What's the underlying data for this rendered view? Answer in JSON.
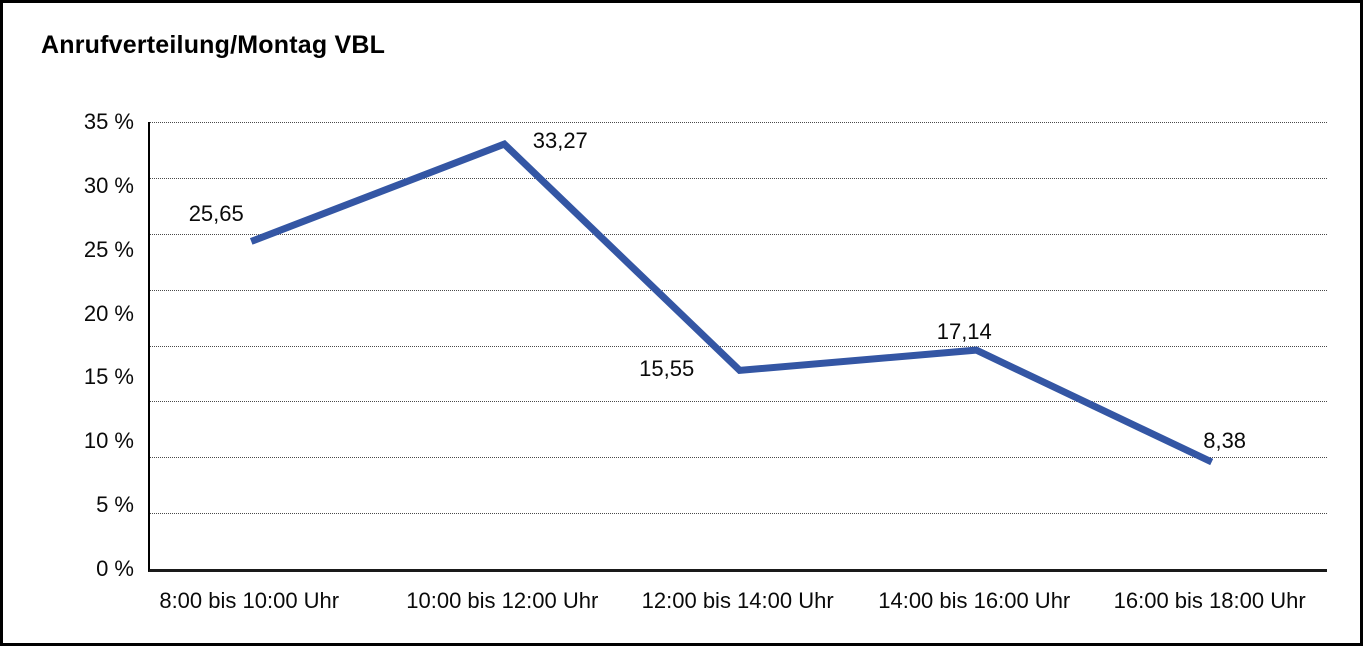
{
  "title": "Anrufverteilung/Montag VBL",
  "chart_data": {
    "type": "line",
    "title": "Anrufverteilung/Montag VBL",
    "categories": [
      "8:00 bis 10:00 Uhr",
      "10:00 bis 12:00 Uhr",
      "12:00 bis 14:00 Uhr",
      "14:00 bis 16:00 Uhr",
      "16:00 bis 18:00 Uhr"
    ],
    "values": [
      25.65,
      33.27,
      15.55,
      17.14,
      8.38
    ],
    "value_labels": [
      "25,65",
      "33,27",
      "15,55",
      "17,14",
      "8,38"
    ],
    "y_tick_labels": [
      "35 %",
      "30 %",
      "25 %",
      "20 %",
      "15 %",
      "10 %",
      "5 %",
      "0 %"
    ],
    "ylim": [
      0,
      35
    ],
    "xlabel": "",
    "ylabel": "",
    "grid": "horizontal-dotted",
    "legend": "none",
    "line_color": "#3456A4",
    "axis_color": "#000000",
    "text_color": "#0a0a0a"
  }
}
